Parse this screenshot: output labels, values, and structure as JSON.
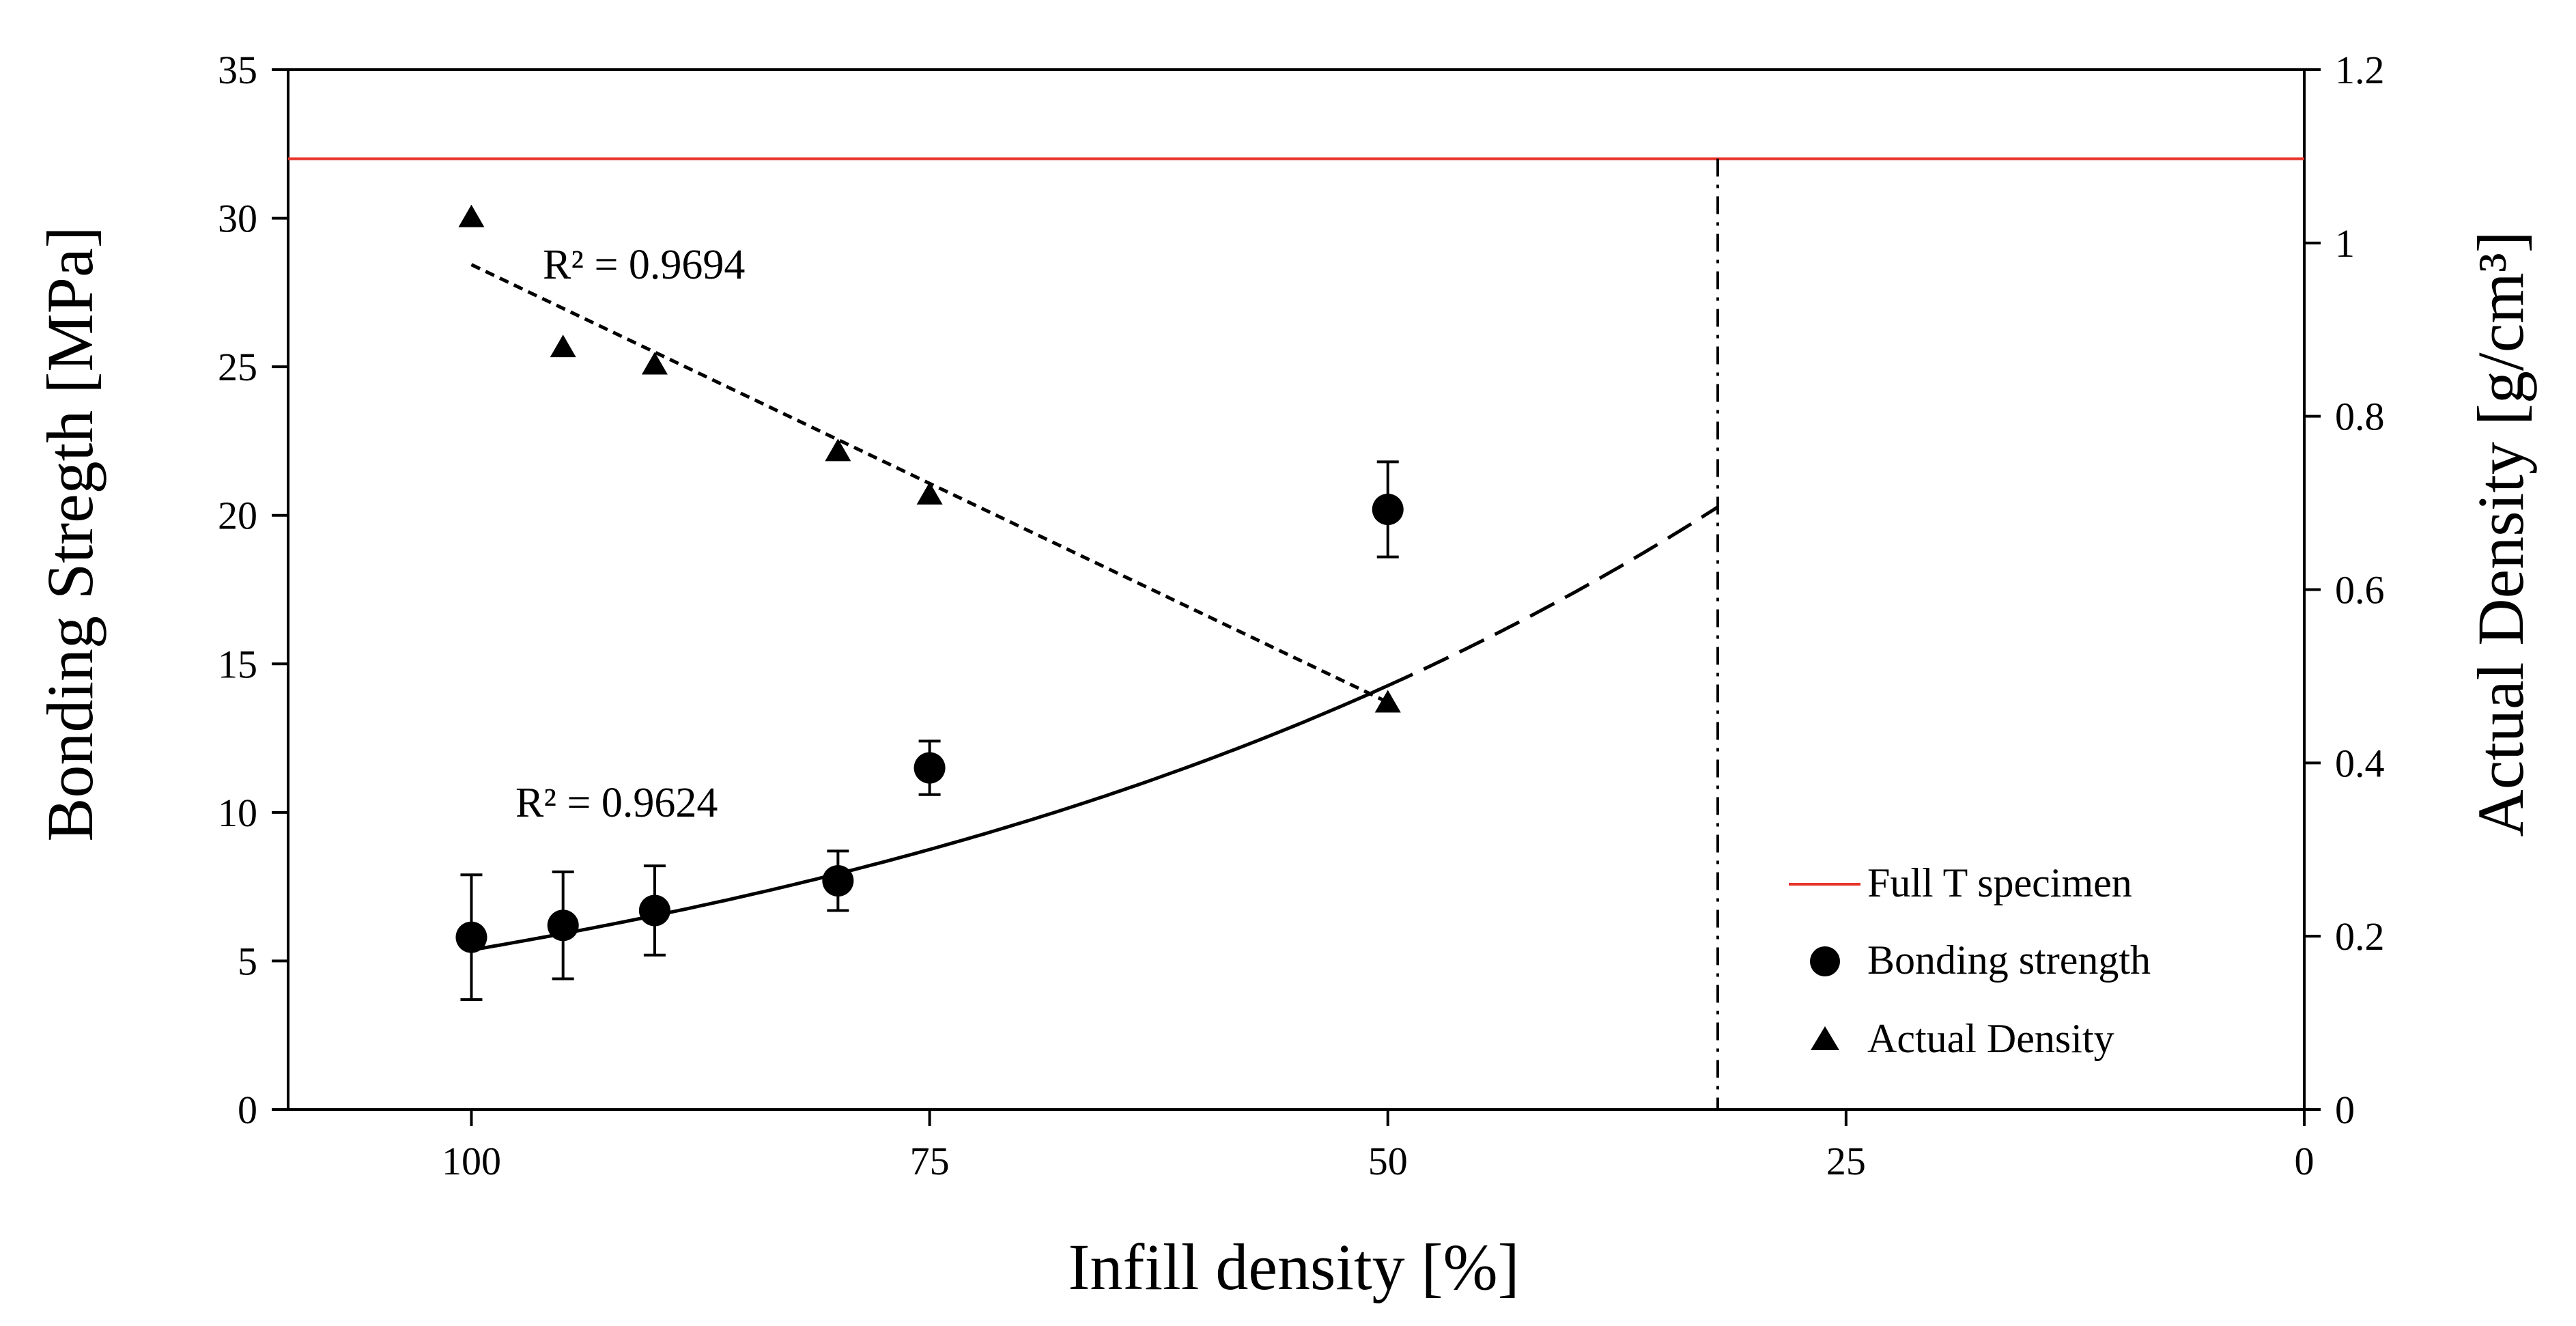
{
  "chart_data": {
    "type": "scatter",
    "xlabel": "Infill density [%]",
    "ylabel_left": "Bonding Stregth [MPa]",
    "ylabel_right": "Actual Density [g/cm³]",
    "xlim": [
      110,
      0
    ],
    "ylim_left": [
      0,
      35
    ],
    "ylim_right": [
      0,
      1.2
    ],
    "x_ticks": [
      100,
      75,
      50,
      25,
      0
    ],
    "y_left_ticks": [
      0,
      5,
      10,
      15,
      20,
      25,
      30,
      35
    ],
    "y_right_ticks": [
      0,
      0.2,
      0.4,
      0.6,
      0.8,
      1,
      1.2
    ],
    "grid": false,
    "legend_position": "bottom-right",
    "colors": {
      "reference_line": "#e8342c",
      "marker": "#000000"
    },
    "reference_line": {
      "name": "Full T specimen",
      "y": 32
    },
    "series": [
      {
        "name": "Bonding strength",
        "axis": "left",
        "marker": "circle",
        "x": [
          100,
          95,
          90,
          80,
          75,
          50
        ],
        "y": [
          5.8,
          6.2,
          6.7,
          7.7,
          11.5,
          20.2
        ],
        "error": [
          2.1,
          1.8,
          1.5,
          1.0,
          0.9,
          1.6
        ]
      },
      {
        "name": "Actual Density",
        "axis": "right",
        "marker": "triangle",
        "x": [
          100,
          95,
          90,
          80,
          75,
          50
        ],
        "y": [
          1.03,
          0.88,
          0.86,
          0.76,
          0.71,
          0.47
        ]
      }
    ],
    "fits": [
      {
        "series": "Bonding strength",
        "type": "exponential",
        "a": 37.9,
        "b": 0.01954,
        "x_range": [
          100,
          50
        ],
        "extrapolate_to": 32,
        "r2_label": "R² = 0.9624"
      },
      {
        "series": "Actual Density",
        "type": "linear",
        "x_range": [
          100,
          50
        ],
        "y_start": 0.975,
        "y_end": 0.47,
        "r2_label": "R² = 0.9694"
      }
    ],
    "vertical_marker_x": 32
  }
}
